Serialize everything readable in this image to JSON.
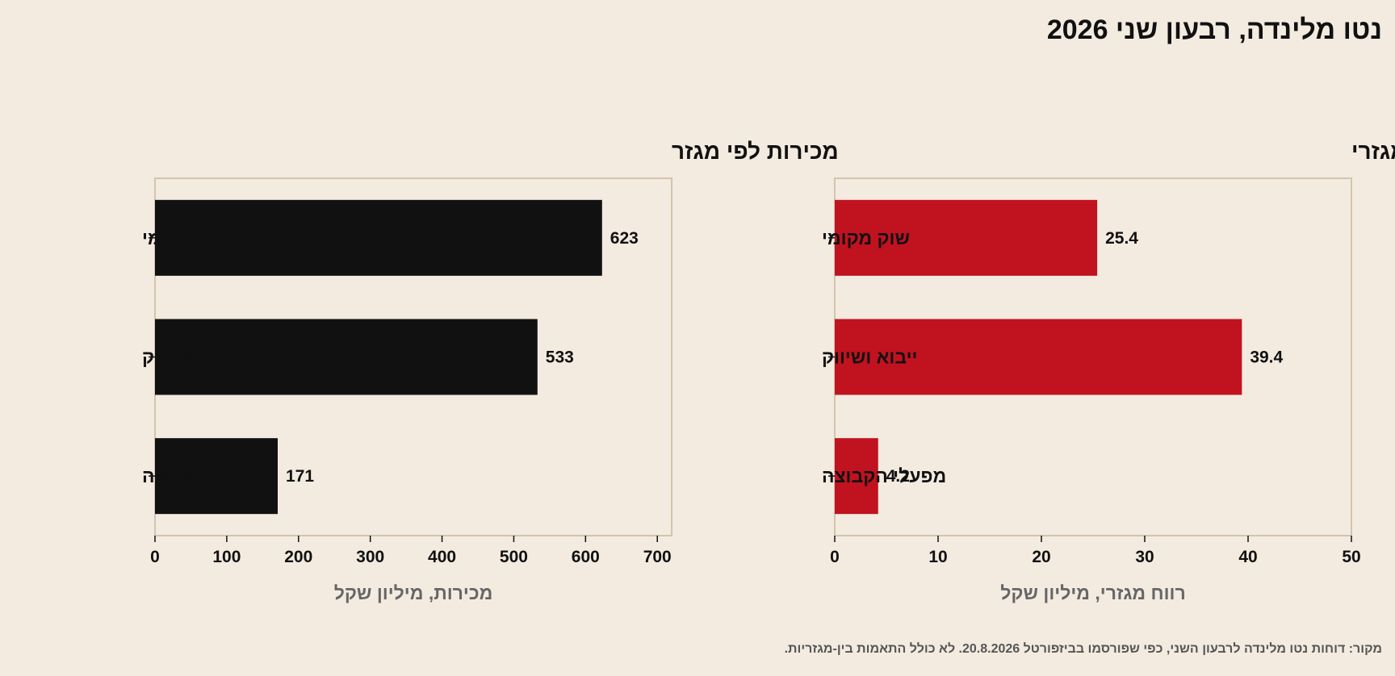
{
  "title": "נטו מלינדה, רבעון שני 2026",
  "footnote": "מקור: דוחות נטו מלינדה לרבעון השני, כפי שפורסמו בביזפורטל 20.8.2026. לא כולל התאמות בין-מגזריות.",
  "colors": {
    "background": "#f3ebe0",
    "sales_bar": "#111111",
    "profit_bar": "#c1121f",
    "frame": "#d4c4ae",
    "axis_label": "#666666"
  },
  "chart_data": [
    {
      "type": "bar",
      "orientation": "horizontal",
      "title": "מכירות לפי מגזר",
      "categories": [
        "שוק מקומי",
        "ייבוא ושיווק",
        "מפעלי הקבוצה"
      ],
      "values": [
        623,
        533,
        171
      ],
      "value_labels": [
        "623",
        "533",
        "171"
      ],
      "xlabel": "מכירות, מיליון שקל",
      "xlim": [
        0,
        720
      ],
      "xticks": [
        0,
        100,
        200,
        300,
        400,
        500,
        600,
        700
      ],
      "color": "#111111",
      "grid": false
    },
    {
      "type": "bar",
      "orientation": "horizontal",
      "title": "רווח מגזרי",
      "categories": [
        "שוק מקומי",
        "ייבוא ושיווק",
        "מפעלי הקבוצה"
      ],
      "values": [
        25.4,
        39.4,
        4.2
      ],
      "value_labels": [
        "25.4",
        "39.4",
        "4.2"
      ],
      "xlabel": "רווח מגזרי, מיליון שקל",
      "xlim": [
        0,
        50
      ],
      "xticks": [
        0,
        10,
        20,
        30,
        40,
        50
      ],
      "color": "#c1121f",
      "grid": false
    }
  ]
}
